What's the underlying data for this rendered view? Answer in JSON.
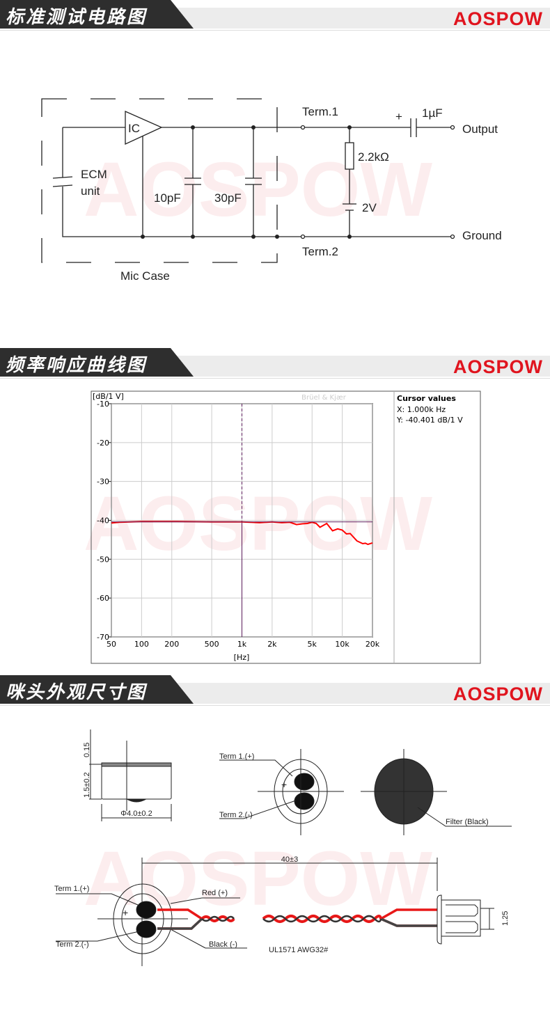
{
  "brand": "AOSPOW",
  "colors": {
    "brand_red": "#e0141e",
    "header_dark": "#2e2e2e",
    "curve": "#ff0000",
    "cursor": "#5a1a5a"
  },
  "sections": [
    {
      "title": "标准测试电路图"
    },
    {
      "title": "频率响应曲线图"
    },
    {
      "title": "咪头外观尺寸图"
    }
  ],
  "circuit": {
    "ic": "IC",
    "ecm": [
      "ECM",
      "unit"
    ],
    "c1": "10pF",
    "c2": "30pF",
    "case": "Mic Case",
    "term1": "Term.1",
    "term2": "Term.2",
    "plus": "+",
    "cap_out": "1µF",
    "resistor": "2.2kΩ",
    "battery": "2V",
    "output": "Output",
    "ground": "Ground"
  },
  "chart_data": {
    "type": "line",
    "ylabel": "[dB/1 V]",
    "xlabel": "[Hz]",
    "watermark": "Brüel & Kjær",
    "x_scale": "log",
    "xlim": [
      50,
      20000
    ],
    "ylim": [
      -70,
      -10
    ],
    "x_ticks": [
      50,
      100,
      200,
      500,
      1000,
      2000,
      5000,
      10000,
      20000
    ],
    "x_tick_labels": [
      "50",
      "100",
      "200",
      "500",
      "1k",
      "2k",
      "5k",
      "10k",
      "20k"
    ],
    "y_ticks": [
      -10,
      -20,
      -30,
      -40,
      -50,
      -60,
      -70
    ],
    "y_tick_labels": [
      "-10",
      "-20",
      "-30",
      "-40",
      "-50",
      "-60",
      "-70"
    ],
    "grid": true,
    "series": [
      {
        "x": [
          50,
          60,
          100,
          200,
          500,
          1000,
          1500,
          2000,
          2500,
          3000,
          3500,
          4000,
          4500,
          5000,
          5500,
          6000,
          7000,
          8000,
          9000,
          10000,
          11000,
          12000,
          14000,
          16000,
          17000,
          18000,
          20000
        ],
        "y": [
          -40.7,
          -40.5,
          -40.3,
          -40.3,
          -40.4,
          -40.4,
          -40.6,
          -40.4,
          -40.6,
          -40.5,
          -41.1,
          -40.9,
          -40.8,
          -40.5,
          -40.8,
          -41.8,
          -40.8,
          -42.7,
          -42.2,
          -42.5,
          -43.5,
          -43.4,
          -45.3,
          -46.0,
          -45.9,
          -46.2,
          -45.8
        ]
      }
    ],
    "cursor": {
      "x": 1000,
      "y": -40.401
    },
    "cursor_panel": {
      "title": "Cursor values",
      "x_text": "X: 1.000k Hz",
      "y_text": "Y: -40.401 dB/1 V"
    }
  },
  "dimensions": {
    "thickness_top": "0.15",
    "height": "1.5±0.2",
    "diameter": "Φ4.0±0.2",
    "term1": "Term 1.(+)",
    "term2": "Term 2.(-)",
    "plus": "+",
    "filter": "Filter (Black)",
    "length": "40±3",
    "red": "Red (+)",
    "black": "Black (-)",
    "wire": "UL1571 AWG32#",
    "pitch": "1.25"
  }
}
